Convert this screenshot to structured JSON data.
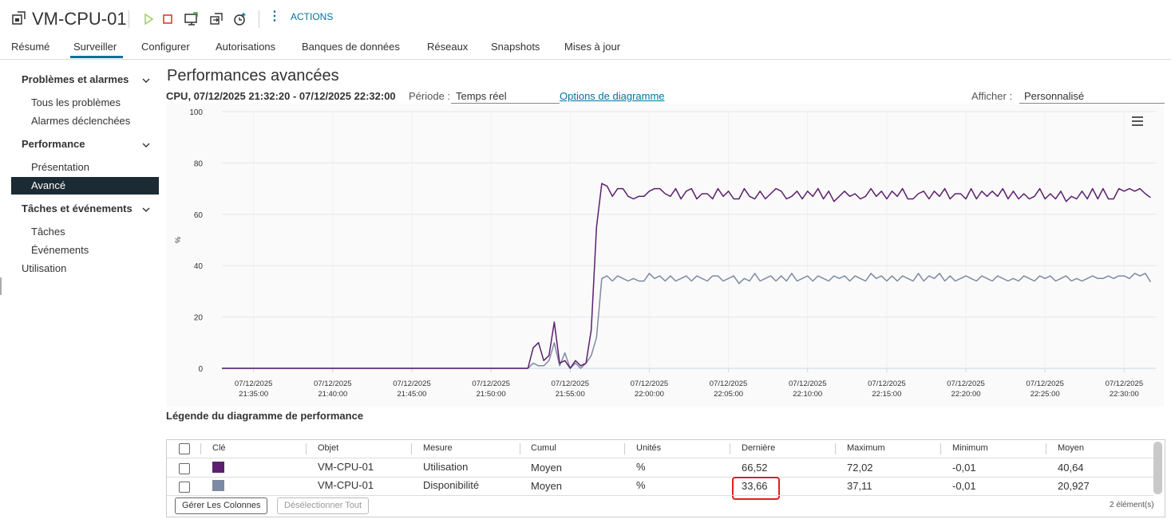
{
  "header": {
    "title": "VM-CPU-01",
    "actions_label": "ACTIONS"
  },
  "tabs": [
    {
      "label": "Résumé"
    },
    {
      "label": "Surveiller"
    },
    {
      "label": "Configurer"
    },
    {
      "label": "Autorisations"
    },
    {
      "label": "Banques de données"
    },
    {
      "label": "Réseaux"
    },
    {
      "label": "Snapshots"
    },
    {
      "label": "Mises à jour"
    }
  ],
  "active_tab": "Surveiller",
  "sidebar": {
    "sections": [
      {
        "label": "Problèmes et alarmes",
        "items": [
          "Tous les problèmes",
          "Alarmes déclenchées"
        ]
      },
      {
        "label": "Performance",
        "items": [
          "Présentation",
          "Avancé"
        ]
      },
      {
        "label": "Tâches et événements",
        "items": [
          "Tâches",
          "Événements"
        ]
      }
    ],
    "extra": "Utilisation",
    "active_item": "Avancé"
  },
  "main": {
    "title": "Performances avancées",
    "subtitle": "CPU, 07/12/2025 21:32:20 - 07/12/2025 22:32:00",
    "period_label": "Période :",
    "period_value": "Temps réel",
    "chart_options": "Options de diagramme",
    "view_label": "Afficher :",
    "view_value": "Personnalisé",
    "legend_title": "Légende du diagramme de performance"
  },
  "chart_data": {
    "type": "line",
    "ylabel": "%",
    "ylim": [
      0,
      100
    ],
    "yticks": [
      0,
      20,
      40,
      60,
      80,
      100
    ],
    "xticks": [
      {
        "date": "07/12/2025",
        "time": "21:35:00"
      },
      {
        "date": "07/12/2025",
        "time": "21:40:00"
      },
      {
        "date": "07/12/2025",
        "time": "21:45:00"
      },
      {
        "date": "07/12/2025",
        "time": "21:50:00"
      },
      {
        "date": "07/12/2025",
        "time": "21:55:00"
      },
      {
        "date": "07/12/2025",
        "time": "22:00:00"
      },
      {
        "date": "07/12/2025",
        "time": "22:05:00"
      },
      {
        "date": "07/12/2025",
        "time": "22:10:00"
      },
      {
        "date": "07/12/2025",
        "time": "22:15:00"
      },
      {
        "date": "07/12/2025",
        "time": "22:20:00"
      },
      {
        "date": "07/12/2025",
        "time": "22:25:00"
      },
      {
        "date": "07/12/2025",
        "time": "22:30:00"
      }
    ],
    "x_start": "21:33:00",
    "x_end": "22:32:00",
    "grid": true,
    "series": [
      {
        "color": "#5c1f6e",
        "points": [
          [
            "21:33:00",
            0
          ],
          [
            "21:52:20",
            0
          ],
          [
            "21:52:40",
            8
          ],
          [
            "21:53:00",
            10
          ],
          [
            "21:53:20",
            3
          ],
          [
            "21:53:40",
            5
          ],
          [
            "21:54:00",
            18
          ],
          [
            "21:54:20",
            2
          ],
          [
            "21:54:40",
            3
          ],
          [
            "21:55:00",
            0
          ],
          [
            "21:55:20",
            3
          ],
          [
            "21:55:40",
            1
          ],
          [
            "21:56:00",
            2
          ],
          [
            "21:56:20",
            15
          ],
          [
            "21:56:40",
            55
          ],
          [
            "21:57:00",
            72
          ],
          [
            "21:57:20",
            71
          ],
          [
            "21:57:40",
            67
          ],
          [
            "21:58:00",
            70
          ],
          [
            "21:58:20",
            70
          ],
          [
            "21:58:40",
            67
          ],
          [
            "21:59:00",
            66
          ],
          [
            "21:59:20",
            67
          ],
          [
            "21:59:40",
            67
          ],
          [
            "22:00:00",
            69
          ],
          [
            "22:00:20",
            70
          ],
          [
            "22:00:40",
            70
          ],
          [
            "22:01:00",
            68
          ],
          [
            "22:01:20",
            67
          ],
          [
            "22:01:40",
            70
          ],
          [
            "22:02:00",
            66
          ],
          [
            "22:02:20",
            69
          ],
          [
            "22:02:40",
            70
          ],
          [
            "22:03:00",
            66
          ],
          [
            "22:03:20",
            68
          ],
          [
            "22:03:40",
            68
          ],
          [
            "22:04:00",
            66
          ],
          [
            "22:04:20",
            70
          ],
          [
            "22:04:40",
            67
          ],
          [
            "22:05:00",
            69
          ],
          [
            "22:05:20",
            66
          ],
          [
            "22:05:40",
            66
          ],
          [
            "22:06:00",
            70
          ],
          [
            "22:06:20",
            67
          ],
          [
            "22:06:40",
            66
          ],
          [
            "22:07:00",
            69
          ],
          [
            "22:07:20",
            66
          ],
          [
            "22:07:40",
            68
          ],
          [
            "22:08:00",
            70
          ],
          [
            "22:08:20",
            69
          ],
          [
            "22:08:40",
            66
          ],
          [
            "22:09:00",
            67
          ],
          [
            "22:09:20",
            69
          ],
          [
            "22:09:40",
            66
          ],
          [
            "22:10:00",
            69
          ],
          [
            "22:10:20",
            67
          ],
          [
            "22:10:40",
            70
          ],
          [
            "22:11:00",
            66
          ],
          [
            "22:11:20",
            69
          ],
          [
            "22:11:40",
            65
          ],
          [
            "22:12:00",
            67
          ],
          [
            "22:12:20",
            69
          ],
          [
            "22:12:40",
            67
          ],
          [
            "22:13:00",
            68
          ],
          [
            "22:13:20",
            66
          ],
          [
            "22:13:40",
            67
          ],
          [
            "22:14:00",
            70
          ],
          [
            "22:14:20",
            67
          ],
          [
            "22:14:40",
            69
          ],
          [
            "22:15:00",
            66
          ],
          [
            "22:15:20",
            69
          ],
          [
            "22:15:40",
            67
          ],
          [
            "22:16:00",
            70
          ],
          [
            "22:16:20",
            66
          ],
          [
            "22:16:40",
            66
          ],
          [
            "22:17:00",
            68
          ],
          [
            "22:17:20",
            69
          ],
          [
            "22:17:40",
            66
          ],
          [
            "22:18:00",
            69
          ],
          [
            "22:18:20",
            67
          ],
          [
            "22:18:40",
            70
          ],
          [
            "22:19:00",
            66
          ],
          [
            "22:19:20",
            68
          ],
          [
            "22:19:40",
            68
          ],
          [
            "22:20:00",
            66
          ],
          [
            "22:20:20",
            70
          ],
          [
            "22:20:40",
            66
          ],
          [
            "22:21:00",
            69
          ],
          [
            "22:21:20",
            67
          ],
          [
            "22:21:40",
            69
          ],
          [
            "22:22:00",
            67
          ],
          [
            "22:22:20",
            70
          ],
          [
            "22:22:40",
            66
          ],
          [
            "22:23:00",
            69
          ],
          [
            "22:23:20",
            66
          ],
          [
            "22:23:40",
            68
          ],
          [
            "22:24:00",
            66
          ],
          [
            "22:24:20",
            67
          ],
          [
            "22:24:40",
            70
          ],
          [
            "22:25:00",
            66
          ],
          [
            "22:25:20",
            68
          ],
          [
            "22:25:40",
            66
          ],
          [
            "22:26:00",
            69
          ],
          [
            "22:26:20",
            65
          ],
          [
            "22:26:40",
            67
          ],
          [
            "22:27:00",
            66
          ],
          [
            "22:27:20",
            69
          ],
          [
            "22:27:40",
            66
          ],
          [
            "22:28:00",
            70
          ],
          [
            "22:28:20",
            66
          ],
          [
            "22:28:40",
            70
          ],
          [
            "22:29:00",
            66
          ],
          [
            "22:29:20",
            66
          ],
          [
            "22:29:40",
            70
          ],
          [
            "22:30:00",
            69
          ],
          [
            "22:30:20",
            70
          ],
          [
            "22:30:40",
            69
          ],
          [
            "22:31:00",
            70
          ],
          [
            "22:31:20",
            68
          ],
          [
            "22:31:40",
            66.52
          ]
        ]
      },
      {
        "color": "#7d8aa3",
        "points": [
          [
            "21:33:00",
            0
          ],
          [
            "21:52:20",
            0
          ],
          [
            "21:52:40",
            2
          ],
          [
            "21:53:00",
            1
          ],
          [
            "21:53:20",
            1
          ],
          [
            "21:53:40",
            3
          ],
          [
            "21:54:00",
            10
          ],
          [
            "21:54:20",
            1
          ],
          [
            "21:54:40",
            6
          ],
          [
            "21:55:00",
            0
          ],
          [
            "21:55:20",
            2
          ],
          [
            "21:55:40",
            0
          ],
          [
            "21:56:00",
            2
          ],
          [
            "21:56:20",
            5
          ],
          [
            "21:56:40",
            12
          ],
          [
            "21:57:00",
            35
          ],
          [
            "21:57:20",
            36
          ],
          [
            "21:57:40",
            34
          ],
          [
            "21:58:00",
            36
          ],
          [
            "21:58:20",
            35
          ],
          [
            "21:58:40",
            34
          ],
          [
            "21:59:00",
            35
          ],
          [
            "21:59:20",
            34
          ],
          [
            "21:59:40",
            34
          ],
          [
            "22:00:00",
            37
          ],
          [
            "22:00:20",
            35
          ],
          [
            "22:00:40",
            36
          ],
          [
            "22:01:00",
            34
          ],
          [
            "22:01:20",
            36
          ],
          [
            "22:01:40",
            34
          ],
          [
            "22:02:00",
            35
          ],
          [
            "22:02:20",
            36
          ],
          [
            "22:02:40",
            34
          ],
          [
            "22:03:00",
            36
          ],
          [
            "22:03:20",
            35
          ],
          [
            "22:03:40",
            34
          ],
          [
            "22:04:00",
            36
          ],
          [
            "22:04:20",
            36
          ],
          [
            "22:04:40",
            34
          ],
          [
            "22:05:00",
            35
          ],
          [
            "22:05:20",
            36
          ],
          [
            "22:05:40",
            33
          ],
          [
            "22:06:00",
            35
          ],
          [
            "22:06:20",
            34
          ],
          [
            "22:06:40",
            37
          ],
          [
            "22:07:00",
            34
          ],
          [
            "22:07:20",
            35
          ],
          [
            "22:07:40",
            36
          ],
          [
            "22:08:00",
            34
          ],
          [
            "22:08:20",
            36
          ],
          [
            "22:08:40",
            34
          ],
          [
            "22:09:00",
            37
          ],
          [
            "22:09:20",
            34
          ],
          [
            "22:09:40",
            35
          ],
          [
            "22:10:00",
            36
          ],
          [
            "22:10:20",
            34
          ],
          [
            "22:10:40",
            36
          ],
          [
            "22:11:00",
            35
          ],
          [
            "22:11:20",
            34
          ],
          [
            "22:11:40",
            36
          ],
          [
            "22:12:00",
            35
          ],
          [
            "22:12:20",
            36
          ],
          [
            "22:12:40",
            34
          ],
          [
            "22:13:00",
            36
          ],
          [
            "22:13:20",
            35
          ],
          [
            "22:13:40",
            34
          ],
          [
            "22:14:00",
            37
          ],
          [
            "22:14:20",
            35
          ],
          [
            "22:14:40",
            36
          ],
          [
            "22:15:00",
            34
          ],
          [
            "22:15:20",
            36
          ],
          [
            "22:15:40",
            34
          ],
          [
            "22:16:00",
            36
          ],
          [
            "22:16:20",
            35
          ],
          [
            "22:16:40",
            34
          ],
          [
            "22:17:00",
            37
          ],
          [
            "22:17:20",
            34
          ],
          [
            "22:17:40",
            36
          ],
          [
            "22:18:00",
            35
          ],
          [
            "22:18:20",
            37
          ],
          [
            "22:18:40",
            34
          ],
          [
            "22:19:00",
            36
          ],
          [
            "22:19:20",
            34
          ],
          [
            "22:19:40",
            35
          ],
          [
            "22:20:00",
            36
          ],
          [
            "22:20:20",
            35
          ],
          [
            "22:20:40",
            34
          ],
          [
            "22:21:00",
            36
          ],
          [
            "22:21:20",
            35
          ],
          [
            "22:21:40",
            34
          ],
          [
            "22:22:00",
            36
          ],
          [
            "22:22:20",
            35
          ],
          [
            "22:22:40",
            34
          ],
          [
            "22:23:00",
            35
          ],
          [
            "22:23:20",
            34
          ],
          [
            "22:23:40",
            36
          ],
          [
            "22:24:00",
            35
          ],
          [
            "22:24:20",
            34
          ],
          [
            "22:24:40",
            36
          ],
          [
            "22:25:00",
            35
          ],
          [
            "22:25:20",
            36
          ],
          [
            "22:25:40",
            34
          ],
          [
            "22:26:00",
            35
          ],
          [
            "22:26:20",
            36
          ],
          [
            "22:26:40",
            34
          ],
          [
            "22:27:00",
            35
          ],
          [
            "22:27:20",
            34
          ],
          [
            "22:27:40",
            35
          ],
          [
            "22:28:00",
            36
          ],
          [
            "22:28:20",
            35
          ],
          [
            "22:28:40",
            35
          ],
          [
            "22:29:00",
            36
          ],
          [
            "22:29:20",
            35
          ],
          [
            "22:29:40",
            36
          ],
          [
            "22:30:00",
            36
          ],
          [
            "22:30:20",
            35
          ],
          [
            "22:30:40",
            37
          ],
          [
            "22:31:00",
            36
          ],
          [
            "22:31:20",
            37
          ],
          [
            "22:31:40",
            33.66
          ]
        ]
      }
    ]
  },
  "table": {
    "columns": [
      "Clé",
      "Objet",
      "Mesure",
      "Cumul",
      "Unités",
      "Dernière",
      "Maximum",
      "Minimum",
      "Moyen"
    ],
    "rows": [
      {
        "color": "#5c1f6e",
        "objet": "VM-CPU-01",
        "mesure": "Utilisation",
        "cumul": "Moyen",
        "unites": "%",
        "derniere": "66,52",
        "maximum": "72,02",
        "minimum": "-0,01",
        "moyen": "40,64"
      },
      {
        "color": "#7d8aa3",
        "objet": "VM-CPU-01",
        "mesure": "Disponibilité",
        "cumul": "Moyen",
        "unites": "%",
        "derniere": "33,66",
        "maximum": "37,11",
        "minimum": "-0,01",
        "moyen": "20,927"
      }
    ],
    "manage_columns": "Gérer Les Colonnes",
    "deselect_all": "Désélectionner Tout",
    "count": "2 élément(s)"
  }
}
